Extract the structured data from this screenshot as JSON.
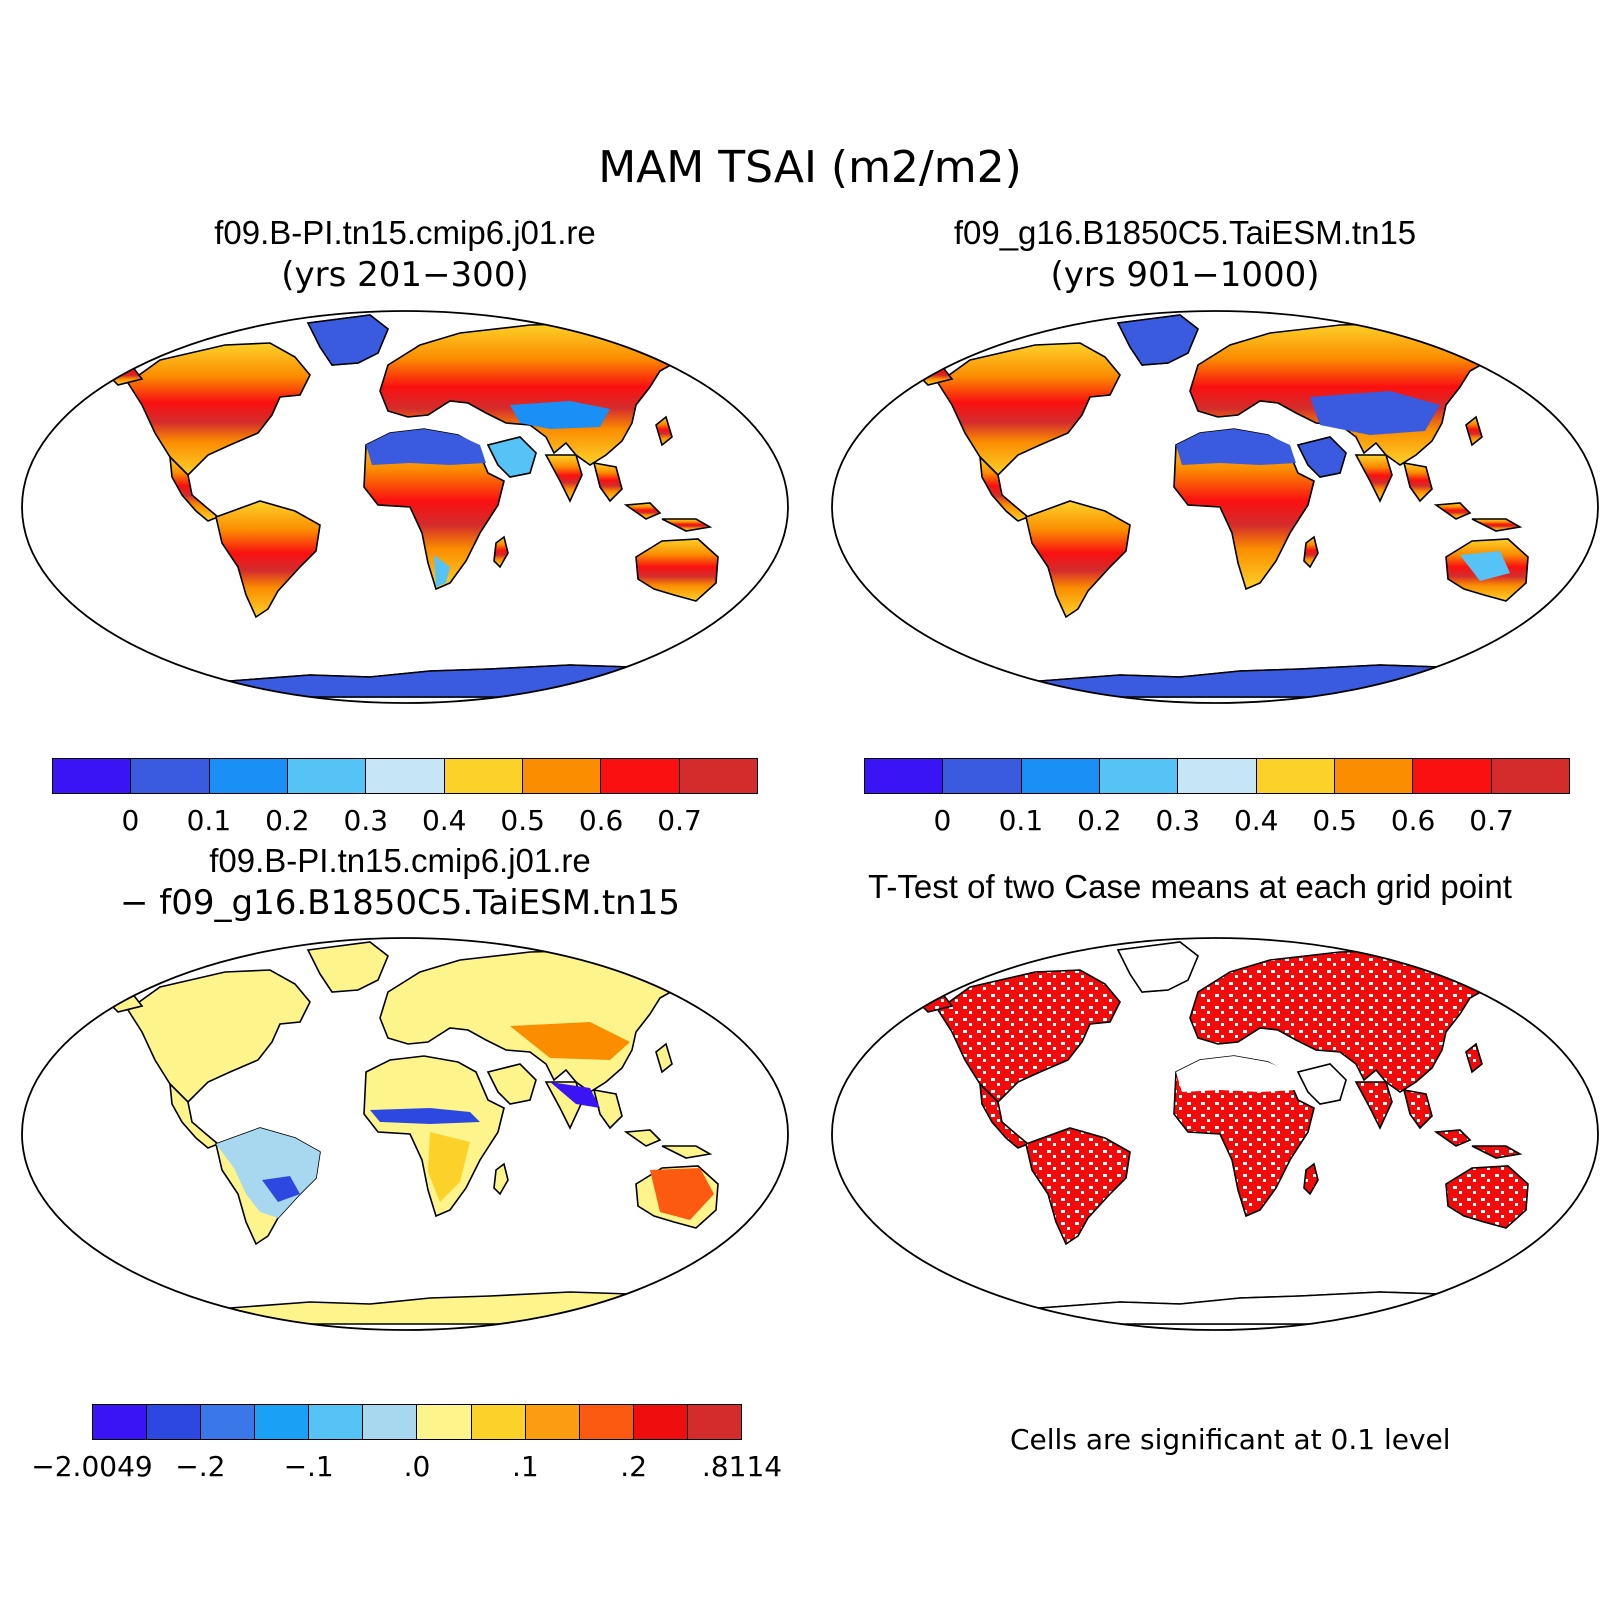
{
  "title": "MAM TSAI (m2/m2)",
  "panels": [
    {
      "id": "case1",
      "title_line1": "f09.B-PI.tn15.cmip6.j01.re",
      "title_line2": "(yrs 201−300)"
    },
    {
      "id": "case2",
      "title_line1": "f09_g16.B1850C5.TaiESM.tn15",
      "title_line2": "(yrs 901−1000)"
    },
    {
      "id": "diff",
      "title_line1": "f09.B-PI.tn15.cmip6.j01.re",
      "title_line2": "− f09_g16.B1850C5.TaiESM.tn15"
    },
    {
      "id": "ttest",
      "title_line1": "T-Test of two Case means at each grid point",
      "title_line2": ""
    }
  ],
  "colorbar_abs": {
    "colors": [
      "#3b14f5",
      "#3a5be0",
      "#1a8ff5",
      "#55c3f5",
      "#c6e6f7",
      "#fcd22a",
      "#fb8d00",
      "#fa1010",
      "#d42c2c"
    ],
    "labels": [
      "0",
      "0.1",
      "0.2",
      "0.3",
      "0.4",
      "0.5",
      "0.6",
      "0.7"
    ]
  },
  "colorbar_diff": {
    "colors": [
      "#3b14f5",
      "#2d48e0",
      "#3a78ea",
      "#1aa0f5",
      "#55c3f5",
      "#a8d8f0",
      "#fdf58c",
      "#fcd22a",
      "#fb9d10",
      "#fb5a10",
      "#ee0e0e",
      "#d42c2c"
    ],
    "labels": [
      "−2.0049",
      "−.2",
      "−.1",
      ".0",
      ".1",
      ".2",
      ".8114"
    ]
  },
  "significance_note": "Cells are significant at 0.1 level",
  "map_colors": {
    "ocean": "#ffffff",
    "ttest_significant": "#f20b0b"
  }
}
